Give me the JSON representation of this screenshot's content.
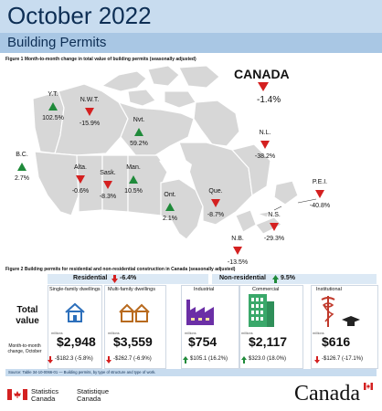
{
  "header": {
    "title": "October 2022",
    "subtitle": "Building Permits"
  },
  "figure1": {
    "label": "Figure 1  Month-to-month change in total value of building permits (seasonally adjusted)"
  },
  "canada": {
    "name": "CANADA",
    "value": "-1.4%",
    "direction": "down"
  },
  "provinces": [
    {
      "code": "Y.T.",
      "value": "102.5%",
      "direction": "up"
    },
    {
      "code": "N.W.T.",
      "value": "-15.9%",
      "direction": "down"
    },
    {
      "code": "Nvt.",
      "value": "59.2%",
      "direction": "up"
    },
    {
      "code": "B.C.",
      "value": "2.7%",
      "direction": "up"
    },
    {
      "code": "Alta.",
      "value": "-0.6%",
      "direction": "down"
    },
    {
      "code": "Sask.",
      "value": "-8.3%",
      "direction": "down"
    },
    {
      "code": "Man.",
      "value": "10.5%",
      "direction": "up"
    },
    {
      "code": "Ont.",
      "value": "2.1%",
      "direction": "up"
    },
    {
      "code": "Que.",
      "value": "-8.7%",
      "direction": "down"
    },
    {
      "code": "N.L.",
      "value": "-38.2%",
      "direction": "down"
    },
    {
      "code": "P.E.I.",
      "value": "-40.8%",
      "direction": "down"
    },
    {
      "code": "N.S.",
      "value": "-29.3%",
      "direction": "down"
    },
    {
      "code": "N.B.",
      "value": "-13.5%",
      "direction": "down"
    }
  ],
  "figure2": {
    "label": "Figure 2  Building permits for residential and non-residential construction in Canada (seasonally adjusted)",
    "residential": {
      "label": "Residential",
      "change": "-6.4%",
      "direction": "down"
    },
    "nonresidential": {
      "label": "Non-residential",
      "change": "9.5%",
      "direction": "up"
    },
    "total_value_label": "Total value",
    "change_label": "Month-to-month change, October",
    "millions": "millions",
    "categories": [
      {
        "name": "Single-family dwellings",
        "value": "$2,948",
        "change": "-$182.3 (-5.8%)",
        "direction": "down"
      },
      {
        "name": "Multi-family dwellings",
        "value": "$3,559",
        "change": "-$262.7 (-6.9%)",
        "direction": "down"
      },
      {
        "name": "Industrial",
        "value": "$754",
        "change": "$105.1 (16.2%)",
        "direction": "up"
      },
      {
        "name": "Commercial",
        "value": "$2,117",
        "change": "$323.0 (18.0%)",
        "direction": "up"
      },
      {
        "name": "Institutional",
        "value": "$616",
        "change": "-$126.7 (-17.1%)",
        "direction": "down"
      }
    ]
  },
  "source": "Source:  Table 34-10-0066-01 — Building permits, by type of structure and type of work.",
  "footer": {
    "statcan_en": "Statistics Canada",
    "statcan_fr": "Statistique Canada",
    "wordmark": "Canada"
  },
  "colors": {
    "up": "#1f8a3a",
    "down": "#d42020",
    "navy": "#0d2e54",
    "header_light": "#c8dcef",
    "header_band": "#a9c7e4",
    "residential_icon": "#2c6fbb",
    "multifamily_icon": "#b86a1e",
    "industrial_icon": "#6b2fa6",
    "commercial_icon": "#3aa86a",
    "institutional_icon": "#c0392b"
  }
}
